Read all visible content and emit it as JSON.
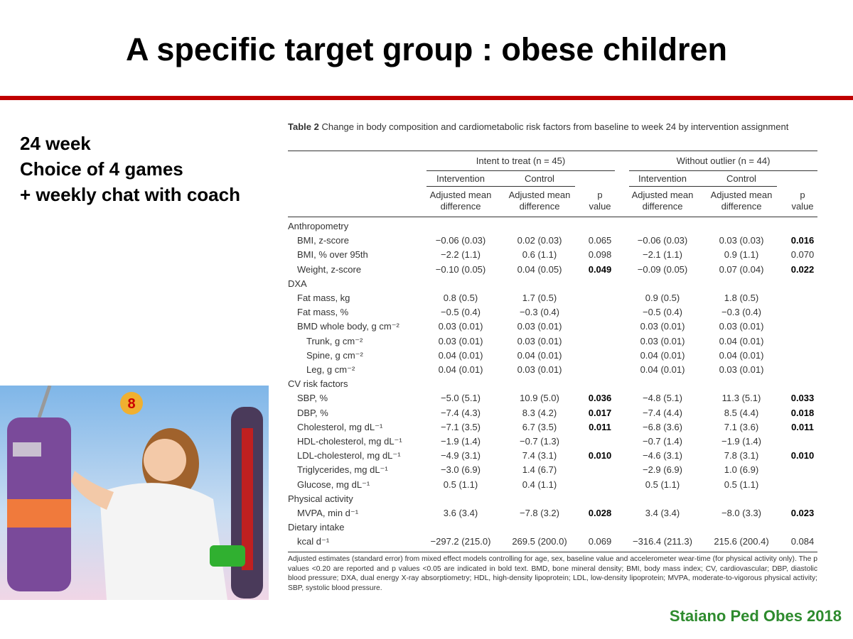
{
  "slide": {
    "title": "A specific target group : obese children",
    "bullets": [
      "24 week",
      "Choice of 4 games",
      "+ weekly chat with coach"
    ],
    "citation": "Staiano Ped Obes 2018",
    "table": {
      "caption_label": "Table 2",
      "caption": "Change in body composition and cardiometabolic risk factors from baseline to week 24 by intervention assignment",
      "groups": [
        {
          "title": "Intent to treat (n = 45)",
          "arms": [
            "Intervention",
            "Control"
          ],
          "measure": "Adjusted mean difference",
          "p": "p value"
        },
        {
          "title": "Without outlier (n = 44)",
          "arms": [
            "Intervention",
            "Control"
          ],
          "measure": "Adjusted mean difference",
          "p": "p value"
        }
      ],
      "sections": [
        {
          "name": "Anthropometry",
          "rows": [
            {
              "label": "BMI, z-score",
              "itt": [
                "−0.06 (0.03)",
                "0.02 (0.03)",
                "0.065"
              ],
              "wo": [
                "−0.06 (0.03)",
                "0.03 (0.03)",
                "0.016"
              ],
              "bold_p": [
                false,
                true
              ]
            },
            {
              "label": "BMI, % over 95th",
              "itt": [
                "−2.2 (1.1)",
                "0.6 (1.1)",
                "0.098"
              ],
              "wo": [
                "−2.1 (1.1)",
                "0.9 (1.1)",
                "0.070"
              ],
              "bold_p": [
                false,
                false
              ]
            },
            {
              "label": "Weight, z-score",
              "itt": [
                "−0.10 (0.05)",
                "0.04 (0.05)",
                "0.049"
              ],
              "wo": [
                "−0.09 (0.05)",
                "0.07 (0.04)",
                "0.022"
              ],
              "bold_p": [
                true,
                true
              ]
            }
          ]
        },
        {
          "name": "DXA",
          "rows": [
            {
              "label": "Fat mass, kg",
              "itt": [
                "0.8 (0.5)",
                "1.7 (0.5)",
                null
              ],
              "wo": [
                "0.9 (0.5)",
                "1.8 (0.5)",
                null
              ],
              "bold_p": [
                false,
                false
              ]
            },
            {
              "label": "Fat mass, %",
              "itt": [
                "−0.5 (0.4)",
                "−0.3 (0.4)",
                null
              ],
              "wo": [
                "−0.5 (0.4)",
                "−0.3 (0.4)",
                null
              ],
              "bold_p": [
                false,
                false
              ]
            },
            {
              "label": "BMD whole body, g cm⁻²",
              "itt": [
                "0.03 (0.01)",
                "0.03 (0.01)",
                null
              ],
              "wo": [
                "0.03 (0.01)",
                "0.03 (0.01)",
                null
              ],
              "bold_p": [
                false,
                false
              ],
              "subrows": [
                {
                  "label": "Trunk, g cm⁻²",
                  "itt": [
                    "0.03 (0.01)",
                    "0.03 (0.01)",
                    null
                  ],
                  "wo": [
                    "0.03 (0.01)",
                    "0.04 (0.01)",
                    null
                  ],
                  "bold_p": [
                    false,
                    false
                  ]
                },
                {
                  "label": "Spine, g cm⁻²",
                  "itt": [
                    "0.04 (0.01)",
                    "0.04 (0.01)",
                    null
                  ],
                  "wo": [
                    "0.04 (0.01)",
                    "0.04 (0.01)",
                    null
                  ],
                  "bold_p": [
                    false,
                    false
                  ]
                },
                {
                  "label": "Leg, g cm⁻²",
                  "itt": [
                    "0.04 (0.01)",
                    "0.03 (0.01)",
                    null
                  ],
                  "wo": [
                    "0.04 (0.01)",
                    "0.03 (0.01)",
                    null
                  ],
                  "bold_p": [
                    false,
                    false
                  ]
                }
              ]
            }
          ]
        },
        {
          "name": "CV risk factors",
          "rows": [
            {
              "label": "SBP, %",
              "itt": [
                "−5.0 (5.1)",
                "10.9 (5.0)",
                "0.036"
              ],
              "wo": [
                "−4.8 (5.1)",
                "11.3 (5.1)",
                "0.033"
              ],
              "bold_p": [
                true,
                true
              ]
            },
            {
              "label": "DBP, %",
              "itt": [
                "−7.4 (4.3)",
                "8.3 (4.2)",
                "0.017"
              ],
              "wo": [
                "−7.4 (4.4)",
                "8.5 (4.4)",
                "0.018"
              ],
              "bold_p": [
                true,
                true
              ]
            },
            {
              "label": "Cholesterol, mg dL⁻¹",
              "itt": [
                "−7.1 (3.5)",
                "6.7 (3.5)",
                "0.011"
              ],
              "wo": [
                "−6.8 (3.6)",
                "7.1 (3.6)",
                "0.011"
              ],
              "bold_p": [
                true,
                true
              ]
            },
            {
              "label": "HDL-cholesterol, mg dL⁻¹",
              "itt": [
                "−1.9 (1.4)",
                "−0.7 (1.3)",
                null
              ],
              "wo": [
                "−0.7 (1.4)",
                "−1.9 (1.4)",
                null
              ],
              "bold_p": [
                false,
                false
              ]
            },
            {
              "label": "LDL-cholesterol, mg dL⁻¹",
              "itt": [
                "−4.9 (3.1)",
                "7.4 (3.1)",
                "0.010"
              ],
              "wo": [
                "−4.6 (3.1)",
                "7.8 (3.1)",
                "0.010"
              ],
              "bold_p": [
                true,
                true
              ]
            },
            {
              "label": "Triglycerides, mg dL⁻¹",
              "itt": [
                "−3.0 (6.9)",
                "1.4 (6.7)",
                null
              ],
              "wo": [
                "−2.9 (6.9)",
                "1.0 (6.9)",
                null
              ],
              "bold_p": [
                false,
                false
              ]
            },
            {
              "label": "Glucose, mg dL⁻¹",
              "itt": [
                "0.5 (1.1)",
                "0.4 (1.1)",
                null
              ],
              "wo": [
                "0.5 (1.1)",
                "0.5 (1.1)",
                null
              ],
              "bold_p": [
                false,
                false
              ]
            }
          ]
        },
        {
          "name": "Physical activity",
          "rows": [
            {
              "label": "MVPA, min d⁻¹",
              "itt": [
                "3.6 (3.4)",
                "−7.8 (3.2)",
                "0.028"
              ],
              "wo": [
                "3.4 (3.4)",
                "−8.0 (3.3)",
                "0.023"
              ],
              "bold_p": [
                true,
                true
              ]
            }
          ]
        },
        {
          "name": "Dietary intake",
          "rows": [
            {
              "label": "kcal d⁻¹",
              "itt": [
                "−297.2 (215.0)",
                "269.5 (200.0)",
                "0.069"
              ],
              "wo": [
                "−316.4 (211.3)",
                "215.6 (200.4)",
                "0.084"
              ],
              "bold_p": [
                false,
                false
              ]
            }
          ]
        }
      ],
      "footnote": "Adjusted estimates (standard error) from mixed effect models controlling for age, sex, baseline value and accelerometer wear-time (for physical activity only). The p values <0.20 are reported and p values <0.05 are indicated in bold text. BMD, bone mineral density; BMI, body mass index; CV, cardiovascular; DBP, diastolic blood pressure; DXA, dual energy X-ray absorptiometry; HDL, high-density lipoprotein; LDL, low-density lipoprotein; MVPA, moderate-to-vigorous physical activity; SBP, systolic blood pressure."
    }
  }
}
